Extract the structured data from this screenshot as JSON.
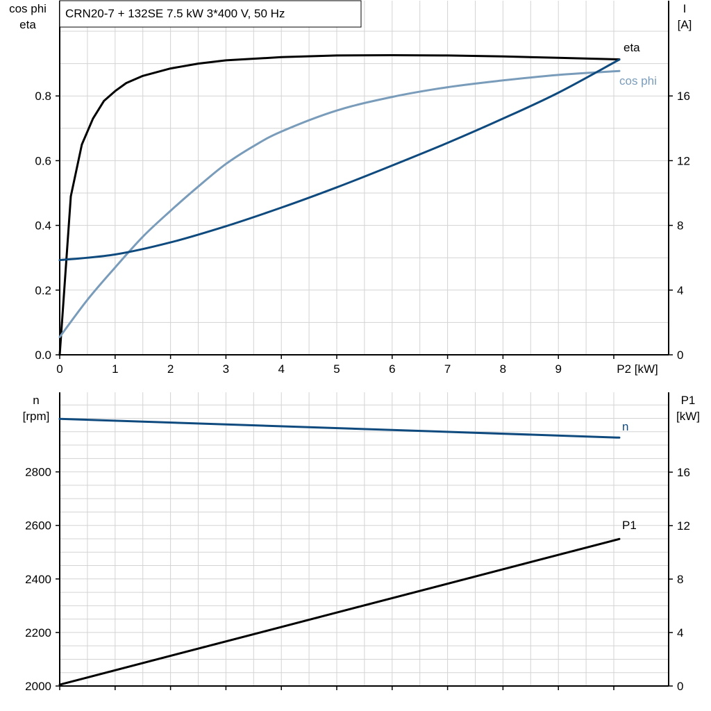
{
  "chart_data": [
    {
      "type": "line",
      "title": "CRN20-7 + 132SE   7.5 kW   3*400 V, 50 Hz",
      "xlabel": "P2 [kW]",
      "ylabel_left": [
        "cos phi",
        "eta"
      ],
      "ylabel_right": [
        "I",
        "[A]"
      ],
      "xlim": [
        0,
        10
      ],
      "ylim_left": [
        0,
        1.0
      ],
      "ylim_right": [
        0,
        20
      ],
      "x_ticks": [
        "0",
        "1",
        "2",
        "3",
        "4",
        "5",
        "6",
        "7",
        "8",
        "9"
      ],
      "y_left_ticks": [
        "0.0",
        "0.2",
        "0.4",
        "0.6",
        "0.8"
      ],
      "y_right_ticks": [
        "0",
        "4",
        "8",
        "12",
        "16"
      ],
      "grid": true,
      "series": [
        {
          "name": "eta",
          "axis": "left",
          "color": "#000000",
          "x": [
            0,
            0.2,
            0.4,
            0.6,
            0.8,
            1.0,
            1.2,
            1.5,
            2,
            2.5,
            3,
            4,
            5,
            6,
            7,
            8,
            9,
            10.1
          ],
          "y": [
            0.0,
            0.49,
            0.65,
            0.73,
            0.785,
            0.815,
            0.84,
            0.862,
            0.885,
            0.9,
            0.91,
            0.92,
            0.925,
            0.926,
            0.925,
            0.922,
            0.918,
            0.913
          ]
        },
        {
          "name": "cos phi",
          "axis": "left",
          "color": "#7a9cbb",
          "x": [
            0,
            0.5,
            1,
            1.5,
            2,
            2.5,
            3,
            3.5,
            4,
            5,
            6,
            7,
            8,
            9,
            10.1
          ],
          "y": [
            0.055,
            0.17,
            0.27,
            0.365,
            0.445,
            0.52,
            0.59,
            0.645,
            0.69,
            0.755,
            0.797,
            0.827,
            0.848,
            0.865,
            0.877
          ]
        },
        {
          "name": "I",
          "axis": "right",
          "color": "#0f4a7e",
          "x": [
            0,
            1,
            2,
            3,
            4,
            5,
            6,
            7,
            8,
            9,
            10.1
          ],
          "y": [
            5.85,
            6.2,
            6.95,
            7.95,
            9.1,
            10.35,
            11.7,
            13.1,
            14.6,
            16.2,
            18.25
          ]
        }
      ]
    },
    {
      "type": "line",
      "title": "",
      "xlabel": "",
      "ylabel_left": [
        "n",
        "[rpm]"
      ],
      "ylabel_right": [
        "P1",
        "[kW]"
      ],
      "xlim": [
        0,
        10
      ],
      "ylim_left": [
        2000,
        3100
      ],
      "ylim_right": [
        0,
        22
      ],
      "y_left_ticks": [
        "2000",
        "2200",
        "2400",
        "2600",
        "2800"
      ],
      "y_right_ticks": [
        "0",
        "4",
        "8",
        "12",
        "16"
      ],
      "grid": true,
      "series": [
        {
          "name": "n",
          "axis": "left",
          "color": "#0f4a7e",
          "x": [
            0,
            10.1
          ],
          "y": [
            2998,
            2928
          ]
        },
        {
          "name": "P1",
          "axis": "right",
          "color": "#000000",
          "x": [
            0,
            10.1
          ],
          "y": [
            0.1,
            11.0
          ]
        }
      ]
    }
  ]
}
